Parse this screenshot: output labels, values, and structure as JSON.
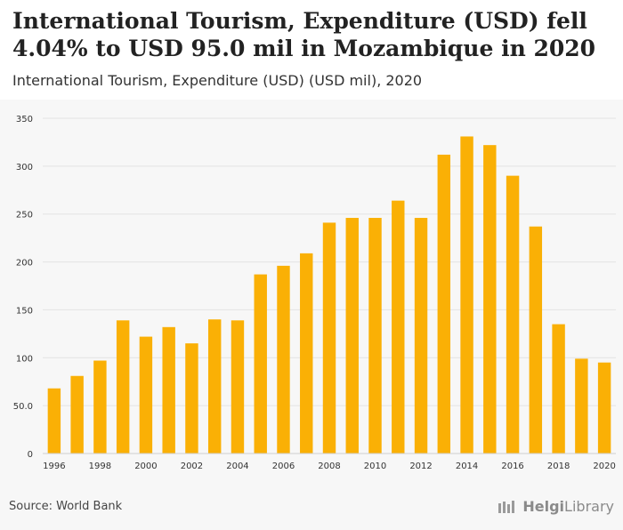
{
  "header": {
    "title": "International Tourism, Expenditure (USD) fell 4.04% to USD 95.0 mil in Mozambique in 2020",
    "subtitle": "International Tourism, Expenditure (USD) (USD mil), 2020"
  },
  "footer": {
    "source": "Source: World Bank",
    "brand_bold": "Helgi",
    "brand_light": "Library"
  },
  "colors": {
    "bar": "#FAB005",
    "grid": "#e3e3e3",
    "axis_text": "#333333"
  },
  "chart_data": {
    "type": "bar",
    "title": "International Tourism, Expenditure (USD) (USD mil), 2020",
    "xlabel": "",
    "ylabel": "",
    "ylim": [
      0,
      350
    ],
    "yticks": [
      0,
      50,
      100,
      150,
      200,
      250,
      300,
      350
    ],
    "ytick_labels": [
      "0",
      "50.0",
      "100",
      "150",
      "200",
      "250",
      "300",
      "350"
    ],
    "categories": [
      "1996",
      "1997",
      "1998",
      "1999",
      "2000",
      "2001",
      "2002",
      "2003",
      "2004",
      "2005",
      "2006",
      "2007",
      "2008",
      "2009",
      "2010",
      "2011",
      "2012",
      "2013",
      "2014",
      "2015",
      "2016",
      "2017",
      "2018",
      "2019",
      "2020"
    ],
    "xtick_labels": [
      "1996",
      "1998",
      "2000",
      "2002",
      "2004",
      "2006",
      "2008",
      "2010",
      "2012",
      "2014",
      "2016",
      "2018",
      "2020"
    ],
    "values": [
      68,
      81,
      97,
      139,
      122,
      132,
      115,
      140,
      139,
      187,
      196,
      209,
      241,
      246,
      246,
      264,
      246,
      312,
      331,
      322,
      290,
      237,
      135,
      99,
      95
    ],
    "grid": true
  }
}
